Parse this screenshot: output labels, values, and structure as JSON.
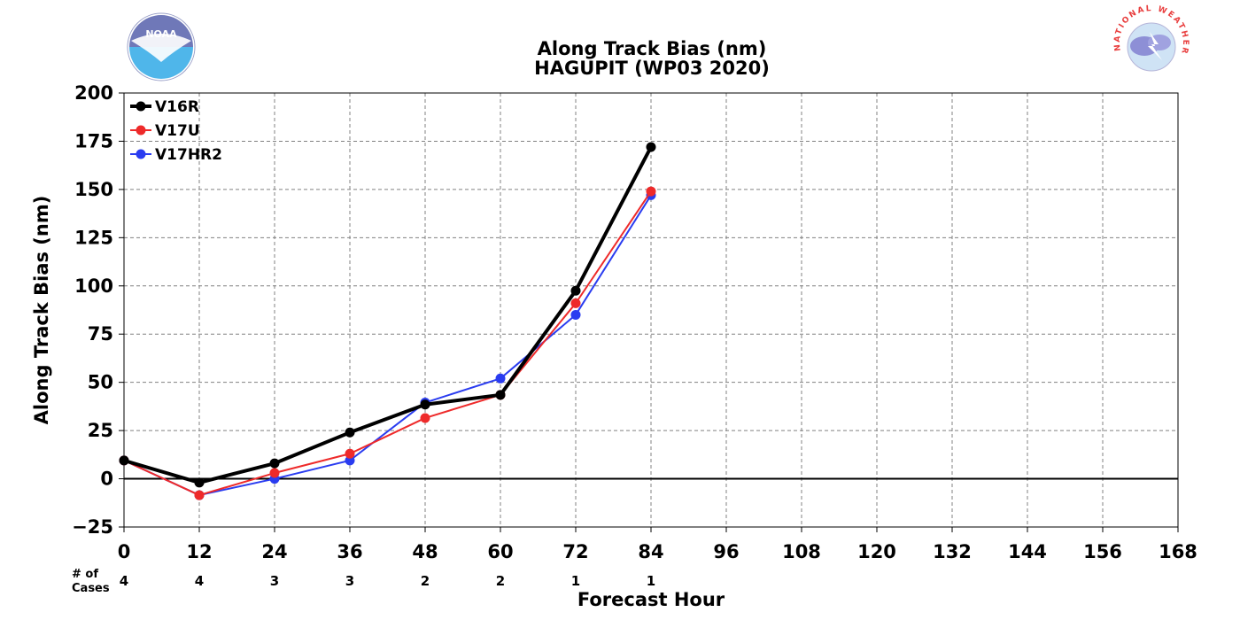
{
  "chart_data": {
    "type": "line",
    "title": "Along Track Bias (nm)",
    "subtitle": "HAGUPIT (WP03 2020)",
    "xlabel": "Forecast Hour",
    "ylabel": "Along Track Bias (nm)",
    "xlim": [
      0,
      168
    ],
    "ylim": [
      -25,
      200
    ],
    "x_ticks": [
      0,
      12,
      24,
      36,
      48,
      60,
      72,
      84,
      96,
      108,
      120,
      132,
      144,
      156,
      168
    ],
    "y_ticks": [
      -25,
      0,
      25,
      50,
      75,
      100,
      125,
      150,
      175,
      200
    ],
    "y_tick_labels": [
      "−25",
      "0",
      "25",
      "50",
      "75",
      "100",
      "125",
      "150",
      "175",
      "200"
    ],
    "grid": true,
    "legend_position": "top-left",
    "cases_label": [
      "# of",
      "Cases"
    ],
    "cases": {
      "x": [
        0,
        12,
        24,
        36,
        48,
        60,
        72,
        84
      ],
      "counts": [
        "4",
        "4",
        "3",
        "3",
        "2",
        "2",
        "1",
        "1"
      ]
    },
    "series": [
      {
        "name": "V16R",
        "color": "#000000",
        "x": [
          0,
          12,
          24,
          36,
          48,
          60,
          72,
          84
        ],
        "values": [
          9.5,
          -2,
          8,
          24,
          38.5,
          43.5,
          97.5,
          172
        ]
      },
      {
        "name": "V17U",
        "color": "#ee2a2a",
        "x": [
          0,
          12,
          24,
          36,
          48,
          60,
          72,
          84
        ],
        "values": [
          9.5,
          -8.5,
          3,
          13,
          31.5,
          43.5,
          91,
          149
        ]
      },
      {
        "name": "V17HR2",
        "color": "#2a3cf0",
        "x": [
          0,
          12,
          24,
          36,
          48,
          60,
          72,
          84
        ],
        "values": [
          9.5,
          -8.5,
          0,
          9.5,
          39.5,
          52,
          85,
          147
        ]
      }
    ]
  },
  "logos": {
    "left": {
      "name": "NOAA",
      "text": "NOAA"
    },
    "right": {
      "name": "NATIONAL WEATHER SERVICE",
      "text": "NATIONAL WEATHER SERVICE"
    }
  }
}
